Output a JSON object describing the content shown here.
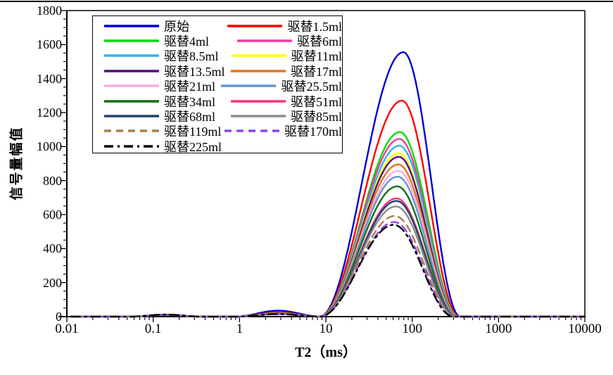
{
  "page": {
    "background": "#ffffff",
    "top_rule_color": "#000000"
  },
  "chart_data": {
    "type": "line",
    "title": "",
    "xlabel": "T2（ms）",
    "ylabel": "信号量幅值",
    "x_scale": "log",
    "xlim": [
      0.01,
      10000
    ],
    "ylim": [
      0,
      1800
    ],
    "x_ticks": [
      0.01,
      0.1,
      1,
      10,
      100,
      1000,
      10000
    ],
    "x_tick_labels": [
      "0.01",
      "0.1",
      "1",
      "10",
      "100",
      "1000",
      "10000"
    ],
    "y_ticks": [
      0,
      200,
      400,
      600,
      800,
      1000,
      1200,
      1400,
      1600,
      1800
    ],
    "y_minor_step": 50,
    "grid": false,
    "legend_position": "top-left-inside",
    "curve_model": {
      "description": "Each T2 spectrum = three arches (raised-cosine in log10(ms) space): small bump ~0.14 ms, small bump ~2.8 ms, main peak. Main peak rises from zero_left_ms and returns to zero at zero_right_ms with apex (peak) at peak_ms.",
      "bump1_center_ms": 0.14,
      "bump1_halfwidth_log": 0.42,
      "bump2_center_ms": 2.8,
      "bump2_halfwidth_log": 0.5
    },
    "series": [
      {
        "name": "原始",
        "color": "#0000D4",
        "style": "solid",
        "peak": 1555,
        "peak_ms": 79,
        "zero_left_ms": 8.5,
        "zero_right_ms": 360,
        "bump1": 10,
        "bump2": 35
      },
      {
        "name": "驱替1.5ml",
        "color": "#FE0000",
        "style": "solid",
        "peak": 1270,
        "peak_ms": 76,
        "zero_left_ms": 8.5,
        "zero_right_ms": 350,
        "bump1": 10,
        "bump2": 24
      },
      {
        "name": "驱替4ml",
        "color": "#00DC00",
        "style": "solid",
        "peak": 1085,
        "peak_ms": 72,
        "zero_left_ms": 8.5,
        "zero_right_ms": 345,
        "bump1": 10,
        "bump2": 20
      },
      {
        "name": "驱替6ml",
        "color": "#F03CA0",
        "style": "solid",
        "peak": 1045,
        "peak_ms": 71,
        "zero_left_ms": 8.5,
        "zero_right_ms": 342,
        "bump1": 10,
        "bump2": 19
      },
      {
        "name": "驱替8.5ml",
        "color": "#2FB4EC",
        "style": "solid",
        "peak": 1005,
        "peak_ms": 71,
        "zero_left_ms": 8.5,
        "zero_right_ms": 340,
        "bump1": 10,
        "bump2": 19
      },
      {
        "name": "驱替11ml",
        "color": "#FFFF00",
        "style": "solid",
        "peak": 960,
        "peak_ms": 70,
        "zero_left_ms": 8.5,
        "zero_right_ms": 338,
        "bump1": 10,
        "bump2": 18
      },
      {
        "name": "驱替13.5ml",
        "color": "#560C84",
        "style": "solid",
        "peak": 940,
        "peak_ms": 70,
        "zero_left_ms": 8.5,
        "zero_right_ms": 336,
        "bump1": 10,
        "bump2": 18
      },
      {
        "name": "驱替17ml",
        "color": "#E2761B",
        "style": "solid",
        "peak": 895,
        "peak_ms": 69,
        "zero_left_ms": 8.5,
        "zero_right_ms": 334,
        "bump1": 10,
        "bump2": 18
      },
      {
        "name": "驱替21ml",
        "color": "#FFABDF",
        "style": "solid",
        "peak": 857,
        "peak_ms": 69,
        "zero_left_ms": 8.5,
        "zero_right_ms": 332,
        "bump1": 10,
        "bump2": 17
      },
      {
        "name": "驱替25.5ml",
        "color": "#6495D2",
        "style": "solid",
        "peak": 823,
        "peak_ms": 68,
        "zero_left_ms": 8.5,
        "zero_right_ms": 330,
        "bump1": 10,
        "bump2": 17
      },
      {
        "name": "驱替34ml",
        "color": "#156F15",
        "style": "solid",
        "peak": 766,
        "peak_ms": 67,
        "zero_left_ms": 8.5,
        "zero_right_ms": 326,
        "bump1": 10,
        "bump2": 17
      },
      {
        "name": "驱替51ml",
        "color": "#F7357E",
        "style": "solid",
        "peak": 695,
        "peak_ms": 66,
        "zero_left_ms": 8.5,
        "zero_right_ms": 322,
        "bump1": 10,
        "bump2": 16
      },
      {
        "name": "驱替68ml",
        "color": "#20456F",
        "style": "solid",
        "peak": 680,
        "peak_ms": 66,
        "zero_left_ms": 8.5,
        "zero_right_ms": 320,
        "bump1": 10,
        "bump2": 16
      },
      {
        "name": "驱替85ml",
        "color": "#8C8C8C",
        "style": "solid",
        "peak": 648,
        "peak_ms": 65,
        "zero_left_ms": 8.5,
        "zero_right_ms": 316,
        "bump1": 11,
        "bump2": 16
      },
      {
        "name": "驱替119ml",
        "color": "#AB7D4D",
        "style": "dashed",
        "peak": 592,
        "peak_ms": 63,
        "zero_left_ms": 8.5,
        "zero_right_ms": 312,
        "bump1": 12,
        "bump2": 15
      },
      {
        "name": "驱替170ml",
        "color": "#8F46F2",
        "style": "dashed",
        "peak": 556,
        "peak_ms": 62,
        "zero_left_ms": 8.5,
        "zero_right_ms": 306,
        "bump1": 12,
        "bump2": 15
      },
      {
        "name": "驱替225ml",
        "color": "#000000",
        "style": "dashdot",
        "peak": 540,
        "peak_ms": 61,
        "zero_left_ms": 8.5,
        "zero_right_ms": 300,
        "bump1": 12,
        "bump2": 15
      }
    ]
  }
}
